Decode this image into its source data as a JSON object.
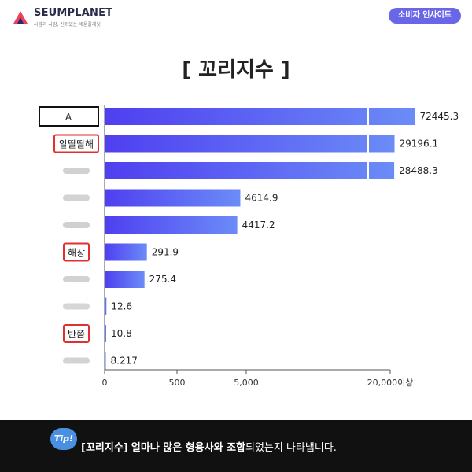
{
  "header": {
    "brand": "SEUMPLANET",
    "tagline": "사람과 사람, 신뢰있는 세움플래닛",
    "badge": "소비자 인사이트"
  },
  "page_title": "[ 꼬리지수 ]",
  "footer": {
    "tip_badge": "Tip!",
    "tip_term": "[꼬리지수]",
    "tip_bold": "얼마나 많은 형용사와 조합",
    "tip_rest": "되었는지 나타냅니다."
  },
  "colors": {
    "bar_start": "#4f3ff0",
    "bar_end": "#6b8cf7",
    "highlight_box": "#e03030",
    "badge": "#6a66e8",
    "footer_bg": "#111111"
  },
  "chart_data": {
    "type": "bar",
    "orientation": "horizontal",
    "categories": [
      "A",
      "알딸딸해",
      "",
      "",
      "",
      "해장",
      "",
      "",
      "반쯤",
      ""
    ],
    "values": [
      72445.3,
      29196.1,
      28488.3,
      4614.9,
      4417.2,
      291.9,
      275.4,
      12.6,
      10.8,
      8.217
    ],
    "value_labels": [
      "72445.3",
      "29196.1",
      "28488.3",
      "4614.9",
      "4417.2",
      "291.9",
      "275.4",
      "12.6",
      "10.8",
      "8.217"
    ],
    "highlighted": [
      0,
      1,
      5,
      8
    ],
    "x_ticks": [
      "0",
      "500",
      "5,000",
      "20,000이상"
    ],
    "x_scale": "broken"
  }
}
